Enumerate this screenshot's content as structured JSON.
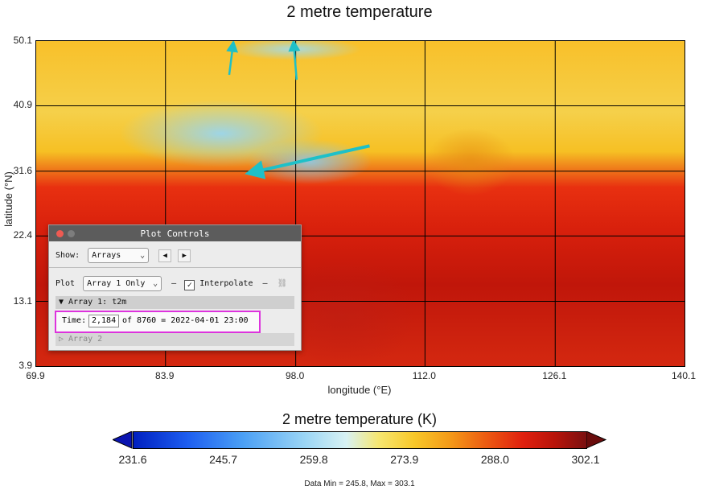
{
  "chart_data": {
    "type": "heatmap",
    "title": "2 metre temperature",
    "xlabel": "longitude (°E)",
    "ylabel": "latitude (°N)",
    "xlim": [
      69.9,
      140.1
    ],
    "ylim": [
      3.9,
      50.1
    ],
    "x_ticks": [
      "69.9",
      "83.9",
      "98.0",
      "112.0",
      "126.1",
      "140.1"
    ],
    "y_ticks": [
      "50.1",
      "40.9",
      "31.6",
      "22.4",
      "13.1",
      "3.9"
    ],
    "grid": true,
    "colorbar": {
      "title": "2 metre temperature (K)",
      "ticks": [
        "231.6",
        "245.7",
        "259.8",
        "273.9",
        "288.0",
        "302.1"
      ],
      "range": [
        231.6,
        302.1
      ],
      "colors": [
        "#0020c0",
        "#4a9ff5",
        "#d8f2f4",
        "#f8c829",
        "#e0200e",
        "#7a1010"
      ]
    },
    "stats_text": "Data Min = 245.8, Max = 303.1",
    "arrows": [
      {
        "x_start": 106.0,
        "y_start": 35.2,
        "x_end": 93.5,
        "y_end": 31.5,
        "color": "#1ec0c8"
      },
      {
        "x_start": 90.8,
        "y_start": 45.3,
        "x_end": 91.2,
        "y_end": 49.4,
        "color": "#1ec0c8"
      },
      {
        "x_start": 98.1,
        "y_start": 44.6,
        "x_end": 97.8,
        "y_end": 49.5,
        "color": "#1ec0c8"
      }
    ]
  },
  "plot_controls": {
    "title": "Plot Controls",
    "show_label": "Show:",
    "show_value": "Arrays",
    "plot_label": "Plot",
    "plot_value": "Array 1 Only",
    "interpolate_label": "Interpolate",
    "interpolate_checked": "✓",
    "array1_header": "▼ Array 1: t2m",
    "time_label": "Time:",
    "time_value": "2,184",
    "time_suffix": "of 8760 = 2022-04-01 23:00",
    "array2_header": "▷ Array 2"
  }
}
